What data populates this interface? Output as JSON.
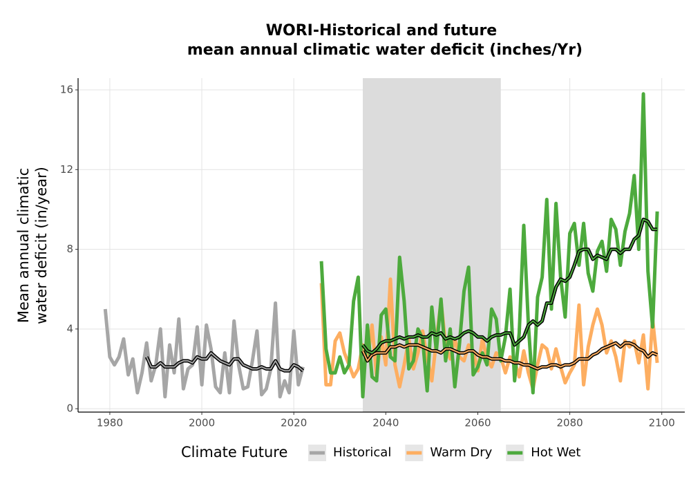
{
  "chart_data": {
    "type": "line",
    "title": [
      "WORI-Historical and future",
      "mean annual climatic water deficit (inches/Yr)"
    ],
    "y_label": [
      "Mean annual climatic",
      "water deficit (in/year)"
    ],
    "legend_title": "Climate Future",
    "xlim": [
      1973.1,
      2105
    ],
    "ylim": [
      -0.17,
      16.59
    ],
    "xticks": [
      1980,
      2000,
      2020,
      2040,
      2060,
      2080,
      2100
    ],
    "yticks": [
      0,
      4,
      8,
      12,
      16
    ],
    "grid": true,
    "shade": [
      2035,
      2065
    ],
    "shade_color": "#dcdcdc",
    "series": [
      {
        "name": "Historical",
        "color": "#a6a6a6",
        "x": [
          1979,
          1980,
          1981,
          1982,
          1983,
          1984,
          1985,
          1986,
          1987,
          1988,
          1989,
          1990,
          1991,
          1992,
          1993,
          1994,
          1995,
          1996,
          1997,
          1998,
          1999,
          2000,
          2001,
          2002,
          2003,
          2004,
          2005,
          2006,
          2007,
          2008,
          2009,
          2010,
          2011,
          2012,
          2013,
          2014,
          2015,
          2016,
          2017,
          2018,
          2019,
          2020,
          2021,
          2022
        ],
        "values": [
          5.0,
          2.6,
          2.2,
          2.6,
          3.5,
          1.7,
          2.5,
          0.8,
          1.8,
          3.3,
          1.4,
          2.2,
          4.0,
          0.6,
          3.2,
          1.8,
          4.5,
          1.0,
          2.0,
          2.2,
          4.1,
          1.2,
          4.2,
          3.0,
          1.1,
          0.8,
          2.8,
          0.8,
          4.4,
          2.2,
          1.0,
          1.1,
          2.4,
          3.9,
          0.7,
          1.0,
          2.0,
          5.3,
          0.6,
          1.4,
          0.8,
          3.9,
          1.2,
          2.1
        ],
        "trend": [
          null,
          null,
          null,
          null,
          null,
          null,
          null,
          null,
          null,
          2.6,
          2.1,
          2.1,
          2.3,
          2.1,
          2.1,
          2.1,
          2.3,
          2.4,
          2.4,
          2.3,
          2.6,
          2.5,
          2.5,
          2.8,
          2.6,
          2.4,
          2.3,
          2.2,
          2.5,
          2.5,
          2.2,
          2.1,
          2.0,
          2.0,
          2.1,
          2.0,
          2.0,
          2.4,
          2.0,
          1.9,
          1.9,
          2.2,
          2.1,
          1.9
        ]
      },
      {
        "name": "Warm Dry",
        "color": "#fdae61",
        "x": [
          2026,
          2027,
          2028,
          2029,
          2030,
          2031,
          2032,
          2033,
          2034,
          2035,
          2036,
          2037,
          2038,
          2039,
          2040,
          2041,
          2042,
          2043,
          2044,
          2045,
          2046,
          2047,
          2048,
          2049,
          2050,
          2051,
          2052,
          2053,
          2054,
          2055,
          2056,
          2057,
          2058,
          2059,
          2060,
          2061,
          2062,
          2063,
          2064,
          2065,
          2066,
          2067,
          2068,
          2069,
          2070,
          2071,
          2072,
          2073,
          2074,
          2075,
          2076,
          2077,
          2078,
          2079,
          2080,
          2081,
          2082,
          2083,
          2084,
          2085,
          2086,
          2087,
          2088,
          2089,
          2090,
          2091,
          2092,
          2093,
          2094,
          2095,
          2096,
          2097,
          2098,
          2099
        ],
        "values": [
          6.3,
          1.2,
          1.2,
          3.4,
          3.8,
          2.8,
          2.2,
          1.6,
          2.0,
          3.2,
          2.4,
          4.2,
          1.6,
          3.6,
          2.2,
          6.5,
          2.2,
          1.1,
          2.2,
          3.5,
          2.0,
          2.8,
          3.9,
          2.6,
          1.4,
          3.4,
          5.4,
          3.2,
          2.5,
          3.5,
          2.6,
          2.4,
          3.2,
          2.9,
          1.9,
          3.5,
          2.5,
          2.1,
          2.8,
          2.6,
          1.8,
          2.6,
          2.4,
          1.6,
          2.9,
          1.8,
          1.0,
          2.2,
          3.2,
          3.0,
          2.0,
          3.0,
          2.1,
          1.3,
          1.8,
          2.2,
          5.2,
          1.2,
          3.1,
          4.2,
          5.0,
          4.2,
          2.8,
          3.4,
          2.6,
          1.4,
          3.4,
          3.1,
          3.4,
          2.3,
          3.7,
          1.0,
          4.5,
          2.3
        ],
        "trend": [
          null,
          null,
          null,
          null,
          null,
          null,
          null,
          null,
          null,
          2.9,
          2.4,
          2.7,
          2.8,
          2.8,
          2.8,
          3.1,
          3.1,
          3.2,
          3.1,
          3.2,
          3.2,
          3.2,
          3.1,
          3.0,
          2.9,
          2.9,
          2.8,
          3.0,
          3.0,
          2.9,
          2.8,
          2.8,
          2.9,
          2.9,
          2.7,
          2.6,
          2.6,
          2.5,
          2.5,
          2.5,
          2.4,
          2.4,
          2.3,
          2.3,
          2.2,
          2.2,
          2.1,
          2.0,
          2.1,
          2.1,
          2.2,
          2.2,
          2.1,
          2.2,
          2.2,
          2.3,
          2.5,
          2.5,
          2.5,
          2.7,
          2.8,
          3.0,
          3.1,
          3.2,
          3.3,
          3.1,
          3.3,
          3.3,
          3.2,
          3.0,
          2.9,
          2.6,
          2.8,
          2.7
        ]
      },
      {
        "name": "Hot Wet",
        "color": "#4daa3d",
        "x": [
          2026,
          2027,
          2028,
          2029,
          2030,
          2031,
          2032,
          2033,
          2034,
          2035,
          2036,
          2037,
          2038,
          2039,
          2040,
          2041,
          2042,
          2043,
          2044,
          2045,
          2046,
          2047,
          2048,
          2049,
          2050,
          2051,
          2052,
          2053,
          2054,
          2055,
          2056,
          2057,
          2058,
          2059,
          2060,
          2061,
          2062,
          2063,
          2064,
          2065,
          2066,
          2067,
          2068,
          2069,
          2070,
          2071,
          2072,
          2073,
          2074,
          2075,
          2076,
          2077,
          2078,
          2079,
          2080,
          2081,
          2082,
          2083,
          2084,
          2085,
          2086,
          2087,
          2088,
          2089,
          2090,
          2091,
          2092,
          2093,
          2094,
          2095,
          2096,
          2097,
          2098,
          2099
        ],
        "values": [
          7.4,
          3.0,
          1.8,
          1.8,
          2.6,
          1.8,
          2.2,
          5.4,
          6.6,
          0.6,
          4.2,
          1.6,
          1.4,
          4.7,
          5.0,
          2.6,
          2.4,
          7.6,
          5.4,
          2.0,
          2.4,
          4.0,
          3.5,
          0.9,
          5.1,
          2.9,
          5.5,
          2.4,
          4.0,
          1.1,
          3.2,
          5.9,
          7.1,
          1.7,
          2.1,
          2.8,
          2.2,
          5.0,
          4.5,
          2.4,
          3.6,
          6.0,
          1.4,
          3.8,
          9.2,
          4.2,
          0.8,
          5.6,
          6.6,
          10.5,
          5.0,
          10.3,
          6.6,
          4.6,
          8.8,
          9.3,
          7.2,
          9.3,
          6.8,
          5.9,
          7.9,
          8.4,
          6.9,
          9.5,
          9.0,
          7.2,
          8.9,
          9.8,
          11.7,
          8.0,
          15.8,
          6.9,
          4.1,
          9.9
        ],
        "trend": [
          null,
          null,
          null,
          null,
          null,
          null,
          null,
          null,
          null,
          3.2,
          2.9,
          2.8,
          3.0,
          3.3,
          3.4,
          3.4,
          3.5,
          3.6,
          3.5,
          3.6,
          3.6,
          3.7,
          3.6,
          3.6,
          3.8,
          3.7,
          3.8,
          3.5,
          3.6,
          3.5,
          3.6,
          3.8,
          3.9,
          3.8,
          3.6,
          3.6,
          3.4,
          3.6,
          3.7,
          3.7,
          3.8,
          3.8,
          3.2,
          3.4,
          3.6,
          4.2,
          4.4,
          4.2,
          4.4,
          5.3,
          5.3,
          6.1,
          6.5,
          6.4,
          6.6,
          7.2,
          7.9,
          8.0,
          8.0,
          7.5,
          7.7,
          7.6,
          7.5,
          8.0,
          8.0,
          7.8,
          8.0,
          8.0,
          8.5,
          8.7,
          9.5,
          9.4,
          9.0,
          9.0
        ]
      }
    ]
  }
}
